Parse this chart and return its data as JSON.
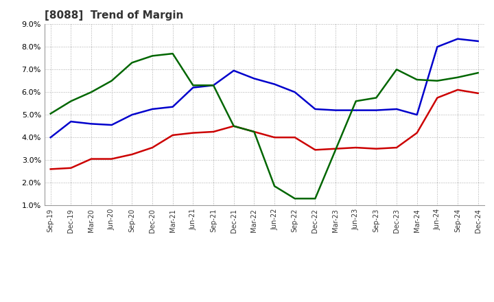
{
  "title": "[8088]  Trend of Margin",
  "x_labels": [
    "Sep-19",
    "Dec-19",
    "Mar-20",
    "Jun-20",
    "Sep-20",
    "Dec-20",
    "Mar-21",
    "Jun-21",
    "Sep-21",
    "Dec-21",
    "Mar-22",
    "Jun-22",
    "Sep-22",
    "Dec-22",
    "Mar-23",
    "Jun-23",
    "Sep-23",
    "Dec-23",
    "Mar-24",
    "Jun-24",
    "Sep-24",
    "Dec-24"
  ],
  "ordinary_income": [
    4.0,
    4.7,
    4.6,
    4.55,
    5.0,
    5.25,
    5.35,
    6.2,
    6.3,
    6.95,
    6.6,
    6.35,
    6.0,
    5.25,
    5.2,
    5.2,
    5.2,
    5.25,
    5.0,
    8.0,
    8.35,
    8.25
  ],
  "net_income": [
    2.6,
    2.65,
    3.05,
    3.05,
    3.25,
    3.55,
    4.1,
    4.2,
    4.25,
    4.5,
    4.25,
    4.0,
    4.0,
    3.45,
    3.5,
    3.55,
    3.5,
    3.55,
    4.2,
    5.75,
    6.1,
    5.95
  ],
  "operating_cashflow": [
    5.05,
    5.6,
    6.0,
    6.5,
    7.3,
    7.6,
    7.7,
    6.3,
    6.3,
    4.5,
    4.25,
    1.85,
    1.3,
    1.3,
    3.45,
    5.6,
    5.75,
    7.0,
    6.55,
    6.5,
    6.65,
    6.85
  ],
  "ylim": [
    1.0,
    9.0
  ],
  "yticks": [
    1.0,
    2.0,
    3.0,
    4.0,
    5.0,
    6.0,
    7.0,
    8.0,
    9.0
  ],
  "line_blue": "#0000cc",
  "line_red": "#cc0000",
  "line_green": "#006600",
  "bg_color": "#ffffff",
  "grid_color": "#aaaaaa",
  "title_color": "#333333"
}
